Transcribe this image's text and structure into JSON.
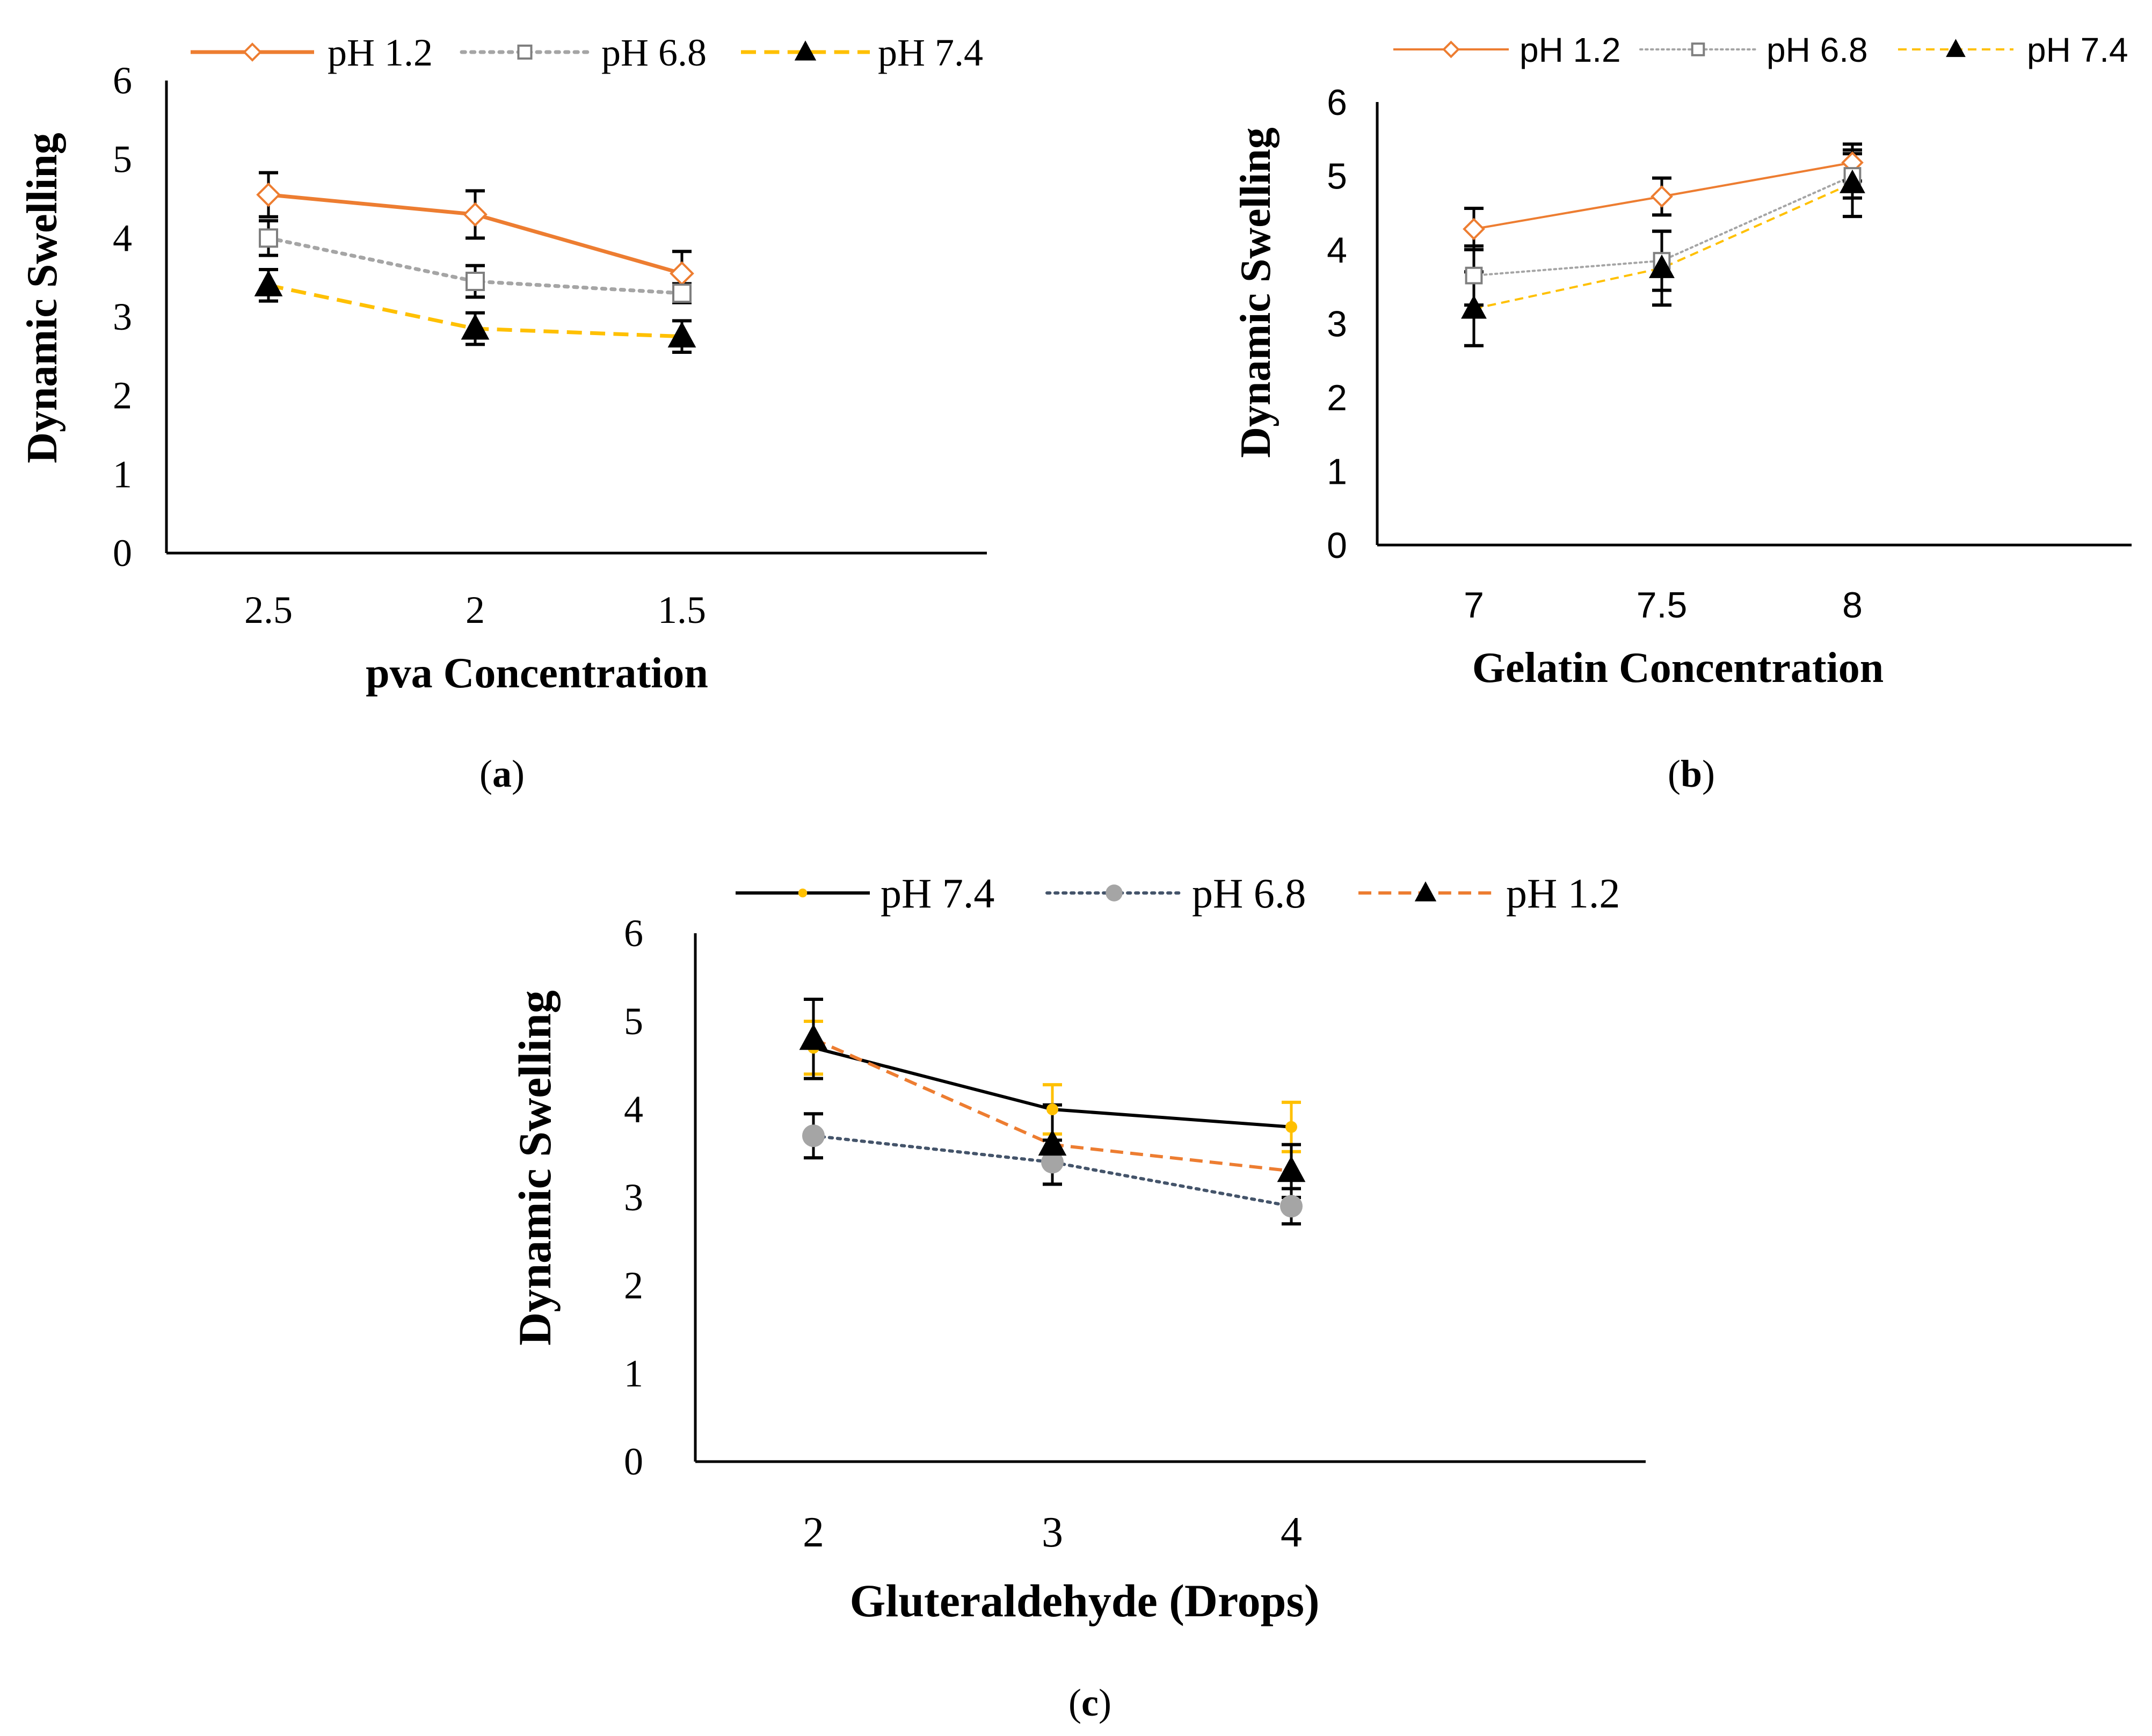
{
  "chart_data": [
    {
      "id": "a",
      "type": "line",
      "caption": "a",
      "xlabel": "pva Concentration",
      "ylabel": "Dynamic Swelling",
      "categories": [
        "2.5",
        "2",
        "1.5"
      ],
      "ylim": [
        0,
        6
      ],
      "yticks": [
        0,
        1,
        2,
        3,
        4,
        5,
        6
      ],
      "grid": false,
      "legend": "top",
      "series": [
        {
          "name": "pH 1.2",
          "values": [
            4.55,
            4.3,
            3.55
          ],
          "errors": [
            0.28,
            0.3,
            0.28
          ],
          "color": "#ED7D31",
          "dash": "solid",
          "marker": "diamond-open",
          "error_color": "#000000"
        },
        {
          "name": "pH 6.8",
          "values": [
            4.0,
            3.45,
            3.3
          ],
          "errors": [
            0.22,
            0.2,
            0.12
          ],
          "color": "#A5A5A5",
          "dash": "dotted",
          "marker": "square-open",
          "error_color": "#000000"
        },
        {
          "name": "pH 7.4",
          "values": [
            3.4,
            2.85,
            2.75
          ],
          "errors": [
            0.2,
            0.2,
            0.2
          ],
          "color": "#FFC000",
          "dash": "dashed",
          "marker": "triangle",
          "error_color": "#000000"
        }
      ]
    },
    {
      "id": "b",
      "type": "line",
      "caption": "b",
      "xlabel": "Gelatin Concentration",
      "ylabel": "Dynamic Swelling",
      "categories": [
        "7",
        "7.5",
        "8"
      ],
      "ylim": [
        0,
        6
      ],
      "yticks": [
        0,
        1,
        2,
        3,
        4,
        5,
        6
      ],
      "grid": false,
      "legend": "top",
      "series": [
        {
          "name": "pH 1.2",
          "values": [
            4.28,
            4.72,
            5.18
          ],
          "errors": [
            0.28,
            0.25,
            0.25
          ],
          "color": "#ED7D31",
          "dash": "solid",
          "marker": "diamond-open",
          "error_color": "#000000"
        },
        {
          "name": "pH 6.8",
          "values": [
            3.65,
            3.85,
            5.0
          ],
          "errors": [
            0.4,
            0.4,
            0.3
          ],
          "color": "#A5A5A5",
          "dash": "dotted",
          "marker": "square-open",
          "error_color": "#000000"
        },
        {
          "name": "pH 7.4",
          "values": [
            3.2,
            3.75,
            4.9
          ],
          "errors": [
            0.5,
            0.5,
            0.45
          ],
          "color": "#FFC000",
          "dash": "thin-dashed",
          "marker": "triangle",
          "error_color": "#000000"
        }
      ]
    },
    {
      "id": "c",
      "type": "line",
      "caption": "c",
      "xlabel": "Gluteraldehyde (Drops)",
      "ylabel": "Dynamic Swelling",
      "categories": [
        "2",
        "3",
        "4"
      ],
      "ylim": [
        0,
        6
      ],
      "yticks": [
        0,
        1,
        2,
        3,
        4,
        5,
        6
      ],
      "grid": false,
      "legend": "top",
      "series": [
        {
          "name": "pH 7.4",
          "values": [
            4.7,
            4.0,
            3.8
          ],
          "errors": [
            0.3,
            0.28,
            0.28
          ],
          "color": "#000000",
          "dash": "solid",
          "marker": "dot-yellow",
          "error_color": "#FFC000"
        },
        {
          "name": "pH 6.8",
          "values": [
            3.7,
            3.4,
            2.9
          ],
          "errors": [
            0.25,
            0.25,
            0.2
          ],
          "color": "#44546A",
          "dash": "dotted",
          "marker": "dot-gray",
          "error_color": "#000000"
        },
        {
          "name": "pH 1.2",
          "values": [
            4.8,
            3.6,
            3.3
          ],
          "errors": [
            0.45,
            0.45,
            0.3
          ],
          "color": "#ED7D31",
          "dash": "dashed",
          "marker": "triangle",
          "error_color": "#000000"
        }
      ]
    }
  ]
}
